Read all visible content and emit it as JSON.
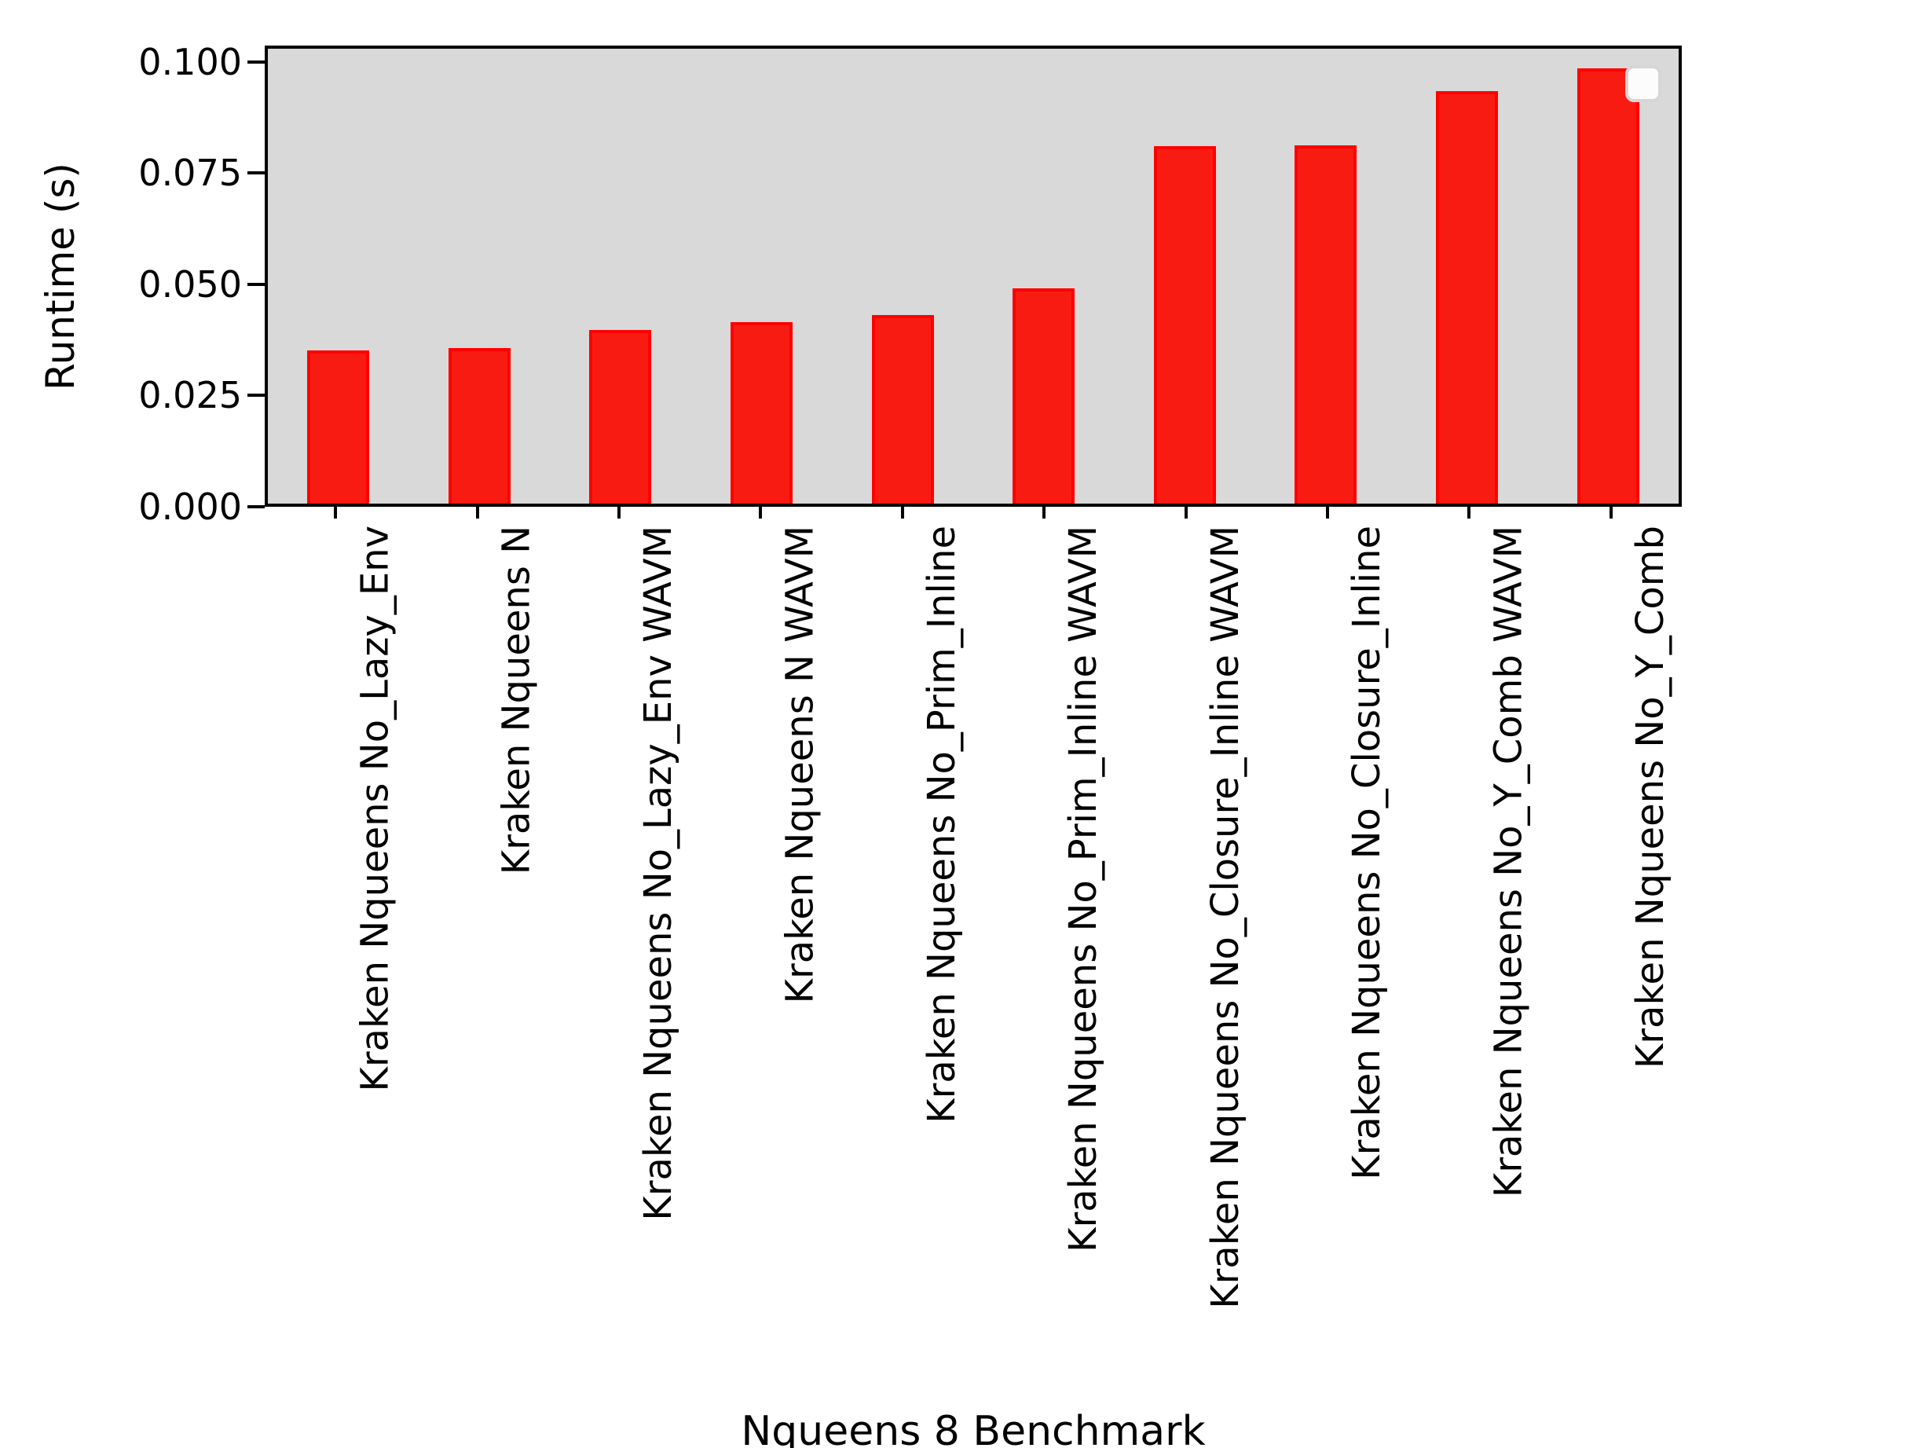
{
  "chart_data": {
    "type": "bar",
    "title": "",
    "xlabel": "Nqueens 8 Benchmark",
    "ylabel": "Runtime (s)",
    "categories": [
      "Kraken Nqueens No_Lazy_Env",
      "Kraken Nqueens N",
      "Kraken Nqueens No_Lazy_Env WAVM",
      "Kraken Nqueens N WAVM",
      "Kraken Nqueens No_Prim_Inline",
      "Kraken Nqueens No_Prim_Inline WAVM",
      "Kraken Nqueens No_Closure_Inline WAVM",
      "Kraken Nqueens No_Closure_Inline",
      "Kraken Nqueens No_Y_Comb WAVM",
      "Kraken Nqueens No_Y_Comb"
    ],
    "values": [
      0.035,
      0.0355,
      0.0395,
      0.0413,
      0.043,
      0.049,
      0.0815,
      0.0817,
      0.094,
      0.0992
    ],
    "yticks": [
      0.0,
      0.025,
      0.05,
      0.075,
      0.1
    ],
    "ytick_labels": [
      "0.000",
      "0.025",
      "0.050",
      "0.075",
      "0.100"
    ],
    "ylim": [
      0,
      0.1037
    ],
    "xtick_rotation": 90,
    "grid": false,
    "legend": "empty box, upper right",
    "colors": {
      "bar_fill": "#f81b11",
      "bar_edge": "#ff0000",
      "plot_background": "#d9d9d9",
      "figure_background": "#ffffff",
      "spine": "#000000"
    }
  }
}
